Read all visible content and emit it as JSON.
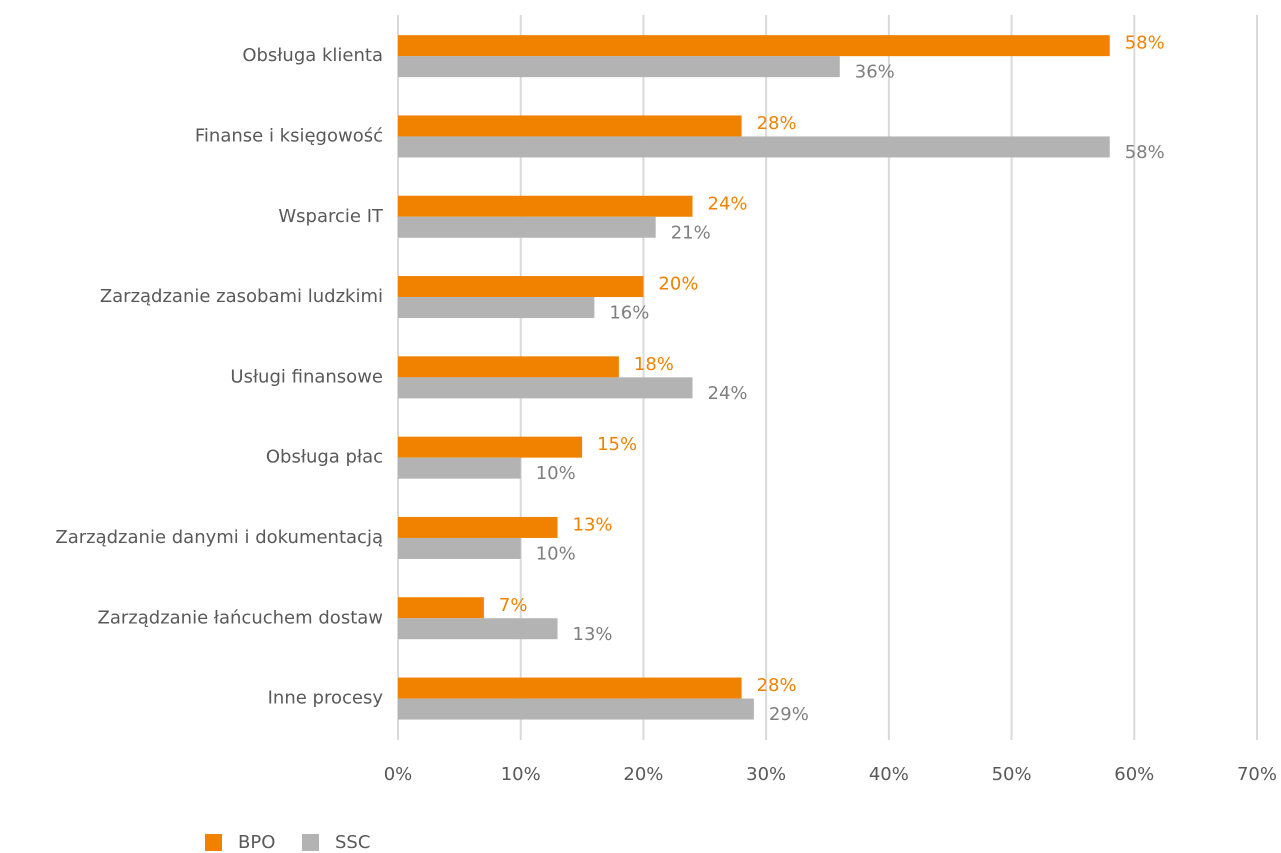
{
  "chart_data": {
    "type": "hbar",
    "categories": [
      "Obsługa klienta",
      "Finanse i księgowość",
      "Wsparcie IT",
      "Zarządzanie zasobami ludzkimi",
      "Usługi finansowe",
      "Obsługa płac",
      "Zarządzanie danymi i dokumentacją",
      "Zarządzanie łańcuchem dostaw",
      "Inne procesy"
    ],
    "series": [
      {
        "name": "BPO",
        "color": "#f08200",
        "values": [
          58,
          28,
          24,
          20,
          18,
          15,
          13,
          7,
          28
        ],
        "value_labels": [
          "58%",
          "28%",
          "24%",
          "20%",
          "18%",
          "15%",
          "13%",
          "7%",
          "28%"
        ]
      },
      {
        "name": "SSC",
        "color": "#b3b3b3",
        "values": [
          36,
          58,
          21,
          16,
          24,
          10,
          10,
          13,
          29
        ],
        "value_labels": [
          "36%",
          "58%",
          "21%",
          "16%",
          "24%",
          "10%",
          "10%",
          "13%",
          "29%"
        ]
      }
    ],
    "xlim": [
      0,
      70
    ],
    "xticks": [
      {
        "value": 0,
        "label": "0%"
      },
      {
        "value": 10,
        "label": "10%"
      },
      {
        "value": 20,
        "label": "20%"
      },
      {
        "value": 30,
        "label": "30%"
      },
      {
        "value": 40,
        "label": "40%"
      },
      {
        "value": 50,
        "label": "50%"
      },
      {
        "value": 60,
        "label": "60%"
      },
      {
        "value": 70,
        "label": "70%"
      }
    ],
    "grid": true,
    "legend": "bottom-left"
  }
}
